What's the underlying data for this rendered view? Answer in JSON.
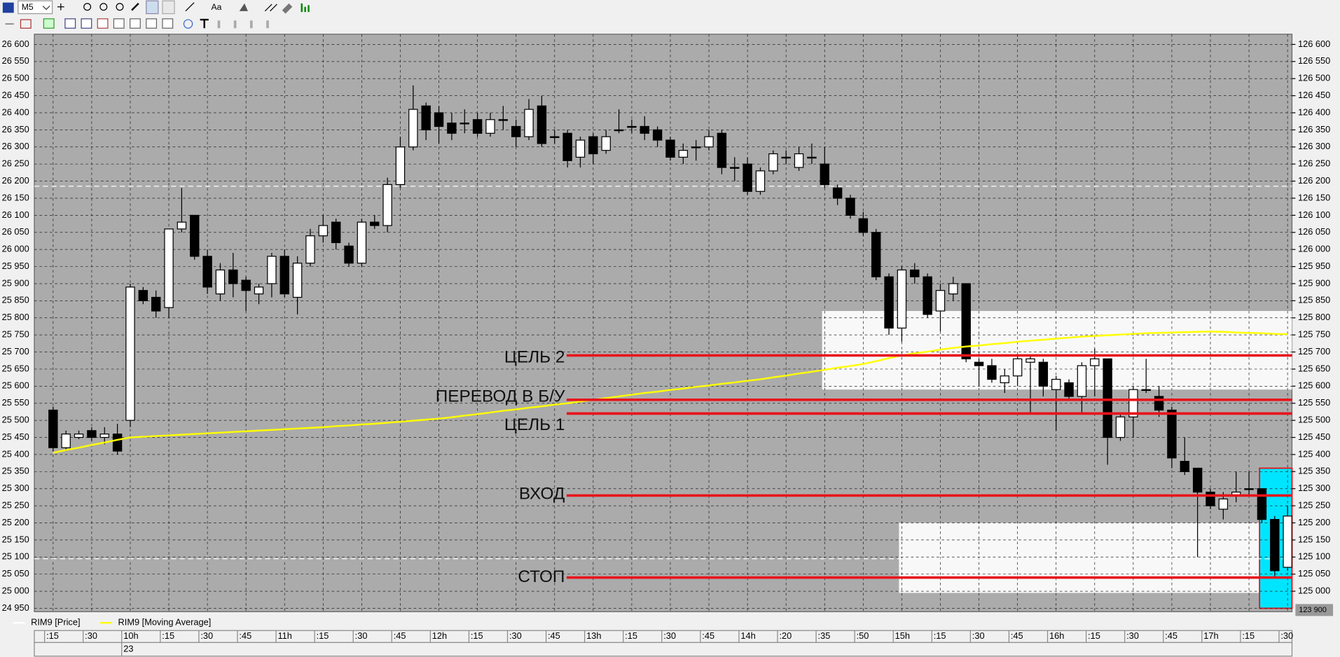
{
  "toolbar": {
    "timeframe": "M5",
    "font_button": "Aa"
  },
  "chart_data": {
    "type": "candlestick",
    "categories": [
      ":15",
      null,
      null,
      ":30",
      null,
      null,
      "10h",
      null,
      null,
      ":15",
      null,
      null,
      ":30",
      null,
      null,
      ":45",
      null,
      null,
      "11h",
      null,
      null,
      ":15",
      null,
      null,
      ":30",
      null,
      null,
      ":45",
      null,
      null,
      "12h",
      null,
      null,
      ":15",
      null,
      null,
      ":30",
      null,
      null,
      ":45",
      null,
      null,
      "13h",
      null,
      null,
      ":15",
      null,
      null,
      ":30",
      null,
      null,
      ":45",
      null,
      null,
      "14h",
      null,
      null,
      ":20",
      null,
      null,
      ":35",
      null,
      null,
      ":50",
      null,
      null,
      "15h",
      null,
      null,
      ":15",
      null,
      null,
      ":30",
      null,
      null,
      ":45",
      null,
      null,
      "16h",
      null,
      null,
      ":15",
      null,
      null,
      ":30",
      null,
      null,
      ":45",
      null,
      null,
      "17h",
      null,
      null,
      ":15",
      null,
      null,
      ":30"
    ],
    "date_label": "23",
    "series": [
      {
        "name": "RIM9 [Price]",
        "color": "#ffffff",
        "open": [
          25530,
          25420,
          25450,
          25470,
          25450,
          25460,
          25500,
          25880,
          25860,
          25830,
          26060,
          26100,
          25980,
          25870,
          25940,
          25910,
          25870,
          25900,
          25980,
          25860,
          25960,
          26040,
          26080,
          26010,
          25960,
          26080,
          26070,
          26190,
          26300,
          26420,
          26400,
          26370,
          26370,
          26380,
          26340,
          26380,
          26360,
          26330,
          26420,
          26330,
          26340,
          26270,
          26330,
          26290,
          26350,
          26360,
          26360,
          26350,
          26320,
          26270,
          26300,
          26300,
          26340,
          26240,
          26250,
          26170,
          26230,
          26270,
          26240,
          26270,
          26250,
          26180,
          26150,
          26090,
          26050,
          25920,
          25770,
          25940,
          25920,
          25820,
          25870,
          25900,
          25670,
          25660,
          25610,
          25630,
          25670,
          25670,
          25590,
          25610,
          25570,
          25660,
          25680,
          25450,
          25510,
          25590,
          25570,
          25530,
          25380,
          25360,
          25290,
          25240,
          25280,
          25300,
          25300,
          25210,
          25070
        ],
        "high": [
          25540,
          25470,
          25470,
          25480,
          25480,
          25490,
          25900,
          25890,
          25880,
          26060,
          26180,
          26100,
          26000,
          25960,
          25990,
          25920,
          25900,
          25990,
          26000,
          25980,
          26060,
          26100,
          26090,
          26020,
          26090,
          26100,
          26210,
          26330,
          26480,
          26430,
          26420,
          26400,
          26410,
          26400,
          26400,
          26420,
          26380,
          26440,
          26450,
          26350,
          26350,
          26330,
          26340,
          26350,
          26410,
          26380,
          26390,
          26360,
          26330,
          26310,
          26320,
          26350,
          26350,
          26270,
          26270,
          26240,
          26290,
          26290,
          26300,
          26310,
          26300,
          26190,
          26160,
          26110,
          26060,
          25930,
          25950,
          25960,
          25930,
          25900,
          25920,
          25900,
          25680,
          25680,
          25650,
          25690,
          25690,
          25680,
          25630,
          25620,
          25670,
          25710,
          25680,
          25520,
          25600,
          25680,
          25600,
          25540,
          25450,
          25360,
          25300,
          25290,
          25350,
          25350,
          25300,
          25220,
          25250
        ],
        "low": [
          25410,
          25410,
          25445,
          25440,
          25430,
          25400,
          25480,
          25840,
          25800,
          25800,
          26050,
          25970,
          25870,
          25850,
          25860,
          25820,
          25840,
          25860,
          25860,
          25810,
          25950,
          26020,
          26000,
          25950,
          25950,
          26060,
          26050,
          26180,
          26290,
          26320,
          26310,
          26320,
          26340,
          26330,
          26330,
          26350,
          26300,
          26320,
          26300,
          26310,
          26240,
          26240,
          26250,
          26280,
          26340,
          26340,
          26320,
          26300,
          26260,
          26250,
          26260,
          26290,
          26220,
          26200,
          26160,
          26160,
          26220,
          26250,
          26230,
          26250,
          26180,
          26130,
          26090,
          26040,
          25910,
          25750,
          25730,
          25900,
          25800,
          25760,
          25850,
          25670,
          25600,
          25610,
          25580,
          25600,
          25520,
          25570,
          25470,
          25560,
          25520,
          25570,
          25370,
          25440,
          25450,
          25580,
          25510,
          25360,
          25340,
          25100,
          25240,
          25210,
          25260,
          25280,
          25200,
          25040,
          25060
        ],
        "close": [
          25420,
          25460,
          25460,
          25450,
          25460,
          25410,
          25890,
          25850,
          25820,
          26060,
          26080,
          25980,
          25890,
          25940,
          25900,
          25880,
          25890,
          25980,
          25870,
          25960,
          26040,
          26070,
          26020,
          25960,
          26080,
          26070,
          26190,
          26300,
          26410,
          26350,
          26360,
          26340,
          26370,
          26340,
          26380,
          26380,
          26330,
          26410,
          26310,
          26330,
          26260,
          26320,
          26280,
          26330,
          26350,
          26360,
          26340,
          26320,
          26270,
          26290,
          26300,
          26330,
          26240,
          26240,
          26170,
          26230,
          26280,
          26270,
          26280,
          26270,
          26190,
          26150,
          26100,
          26050,
          25920,
          25770,
          25940,
          25920,
          25810,
          25880,
          25900,
          25680,
          25660,
          25620,
          25630,
          25680,
          25680,
          25600,
          25620,
          25570,
          25660,
          25680,
          25450,
          25510,
          25590,
          25590,
          25530,
          25390,
          25350,
          25290,
          25250,
          25270,
          25290,
          25300,
          25210,
          25060,
          25220
        ]
      },
      {
        "name": "RIM9 [Moving Average]",
        "color": "#ffff00",
        "values": [
          25405,
          25413,
          25420,
          25428,
          25435,
          25443,
          25450,
          25452,
          25454,
          25456,
          25458,
          25460,
          25462,
          25464,
          25466,
          25468,
          25470,
          25472,
          25474,
          25476,
          25478,
          25480,
          25483,
          25485,
          25488,
          25490,
          25493,
          25496,
          25499,
          25502,
          25505,
          25509,
          25514,
          25518,
          25523,
          25528,
          25532,
          25537,
          25541,
          25546,
          25550,
          25555,
          25560,
          25565,
          25570,
          25575,
          25580,
          25584,
          25589,
          25593,
          25598,
          25602,
          25607,
          25611,
          25616,
          25620,
          25626,
          25631,
          25637,
          25642,
          25648,
          25654,
          25659,
          25665,
          25673,
          25682,
          25690,
          25696,
          25701,
          25707,
          25712,
          25716,
          25719,
          25723,
          25726,
          25730,
          25733,
          25736,
          25739,
          25742,
          25745,
          25747,
          25749,
          25751,
          25753,
          25755,
          25756,
          25757,
          25758,
          25759,
          25760,
          25759,
          25757,
          25756,
          25755,
          25753,
          25752
        ]
      }
    ],
    "ylim": [
      24940,
      26630
    ],
    "yticks": [
      {
        "value": 24950,
        "label": "24 950"
      },
      {
        "value": 25000,
        "label": "25 000"
      },
      {
        "value": 25050,
        "label": "25 050"
      },
      {
        "value": 25100,
        "label": "25 100"
      },
      {
        "value": 25150,
        "label": "25 150"
      },
      {
        "value": 25200,
        "label": "25 200"
      },
      {
        "value": 25250,
        "label": "25 250"
      },
      {
        "value": 25300,
        "label": "25 300"
      },
      {
        "value": 25350,
        "label": "25 350"
      },
      {
        "value": 25400,
        "label": "25 400"
      },
      {
        "value": 25450,
        "label": "25 450"
      },
      {
        "value": 25500,
        "label": "25 500"
      },
      {
        "value": 25550,
        "label": "25 550"
      },
      {
        "value": 25600,
        "label": "25 600"
      },
      {
        "value": 25650,
        "label": "25 650"
      },
      {
        "value": 25700,
        "label": "25 700"
      },
      {
        "value": 25750,
        "label": "25 750"
      },
      {
        "value": 25800,
        "label": "25 800"
      },
      {
        "value": 25850,
        "label": "25 850"
      },
      {
        "value": 25900,
        "label": "25 900"
      },
      {
        "value": 25950,
        "label": "25 950"
      },
      {
        "value": 26000,
        "label": "26 000"
      },
      {
        "value": 26050,
        "label": "26 050"
      },
      {
        "value": 26100,
        "label": "26 100"
      },
      {
        "value": 26150,
        "label": "26 150"
      },
      {
        "value": 26200,
        "label": "26 200"
      },
      {
        "value": 26250,
        "label": "26 250"
      },
      {
        "value": 26300,
        "label": "26 300"
      },
      {
        "value": 26350,
        "label": "26 350"
      },
      {
        "value": 26400,
        "label": "26 400"
      },
      {
        "value": 26450,
        "label": "26 450"
      },
      {
        "value": 26500,
        "label": "26 500"
      },
      {
        "value": 26550,
        "label": "26 550"
      },
      {
        "value": 26600,
        "label": "26 600"
      }
    ],
    "y2lim": [
      124940,
      126630
    ],
    "y2ticks": [
      {
        "value": 125000,
        "label": "125 000"
      },
      {
        "value": 125050,
        "label": "125 050"
      },
      {
        "value": 125100,
        "label": "125 100"
      },
      {
        "value": 125150,
        "label": "125 150"
      },
      {
        "value": 125200,
        "label": "125 200"
      },
      {
        "value": 125250,
        "label": "125 250"
      },
      {
        "value": 125300,
        "label": "125 300"
      },
      {
        "value": 125350,
        "label": "125 350"
      },
      {
        "value": 125400,
        "label": "125 400"
      },
      {
        "value": 125450,
        "label": "125 450"
      },
      {
        "value": 125500,
        "label": "125 500"
      },
      {
        "value": 125550,
        "label": "125 550"
      },
      {
        "value": 125600,
        "label": "125 600"
      },
      {
        "value": 125650,
        "label": "125 650"
      },
      {
        "value": 125700,
        "label": "125 700"
      },
      {
        "value": 125750,
        "label": "125 750"
      },
      {
        "value": 125800,
        "label": "125 800"
      },
      {
        "value": 125850,
        "label": "125 850"
      },
      {
        "value": 125900,
        "label": "125 900"
      },
      {
        "value": 125950,
        "label": "125 950"
      },
      {
        "value": 126000,
        "label": "126 000"
      },
      {
        "value": 126050,
        "label": "126 050"
      },
      {
        "value": 126100,
        "label": "126 100"
      },
      {
        "value": 126150,
        "label": "126 150"
      },
      {
        "value": 126200,
        "label": "126 200"
      },
      {
        "value": 126250,
        "label": "126 250"
      },
      {
        "value": 126300,
        "label": "126 300"
      },
      {
        "value": 126350,
        "label": "126 350"
      },
      {
        "value": 126400,
        "label": "126 400"
      },
      {
        "value": 126450,
        "label": "126 450"
      },
      {
        "value": 126500,
        "label": "126 500"
      },
      {
        "value": 126550,
        "label": "126 550"
      },
      {
        "value": 126600,
        "label": "126 600"
      }
    ],
    "price_marker_label": "123 900",
    "grid": true,
    "levels": [
      {
        "label": "ЦЕЛЬ 2",
        "value": 25690
      },
      {
        "label": "ПЕРЕВОД В Б/У",
        "value": 25560
      },
      {
        "label": "ЦЕЛЬ 1",
        "value": 25520
      },
      {
        "label": "ВХОД",
        "value": 25280
      },
      {
        "label": "СТОП",
        "value": 25040
      }
    ],
    "level_color": "#e8141c",
    "zones": [
      {
        "high": 25820,
        "low": 25590
      },
      {
        "high": 25200,
        "low": 24995
      }
    ],
    "highlight": {
      "high": 25360,
      "low": 24950,
      "color": "#00e5ff"
    },
    "dashed_levels": [
      26185,
      25095
    ]
  }
}
